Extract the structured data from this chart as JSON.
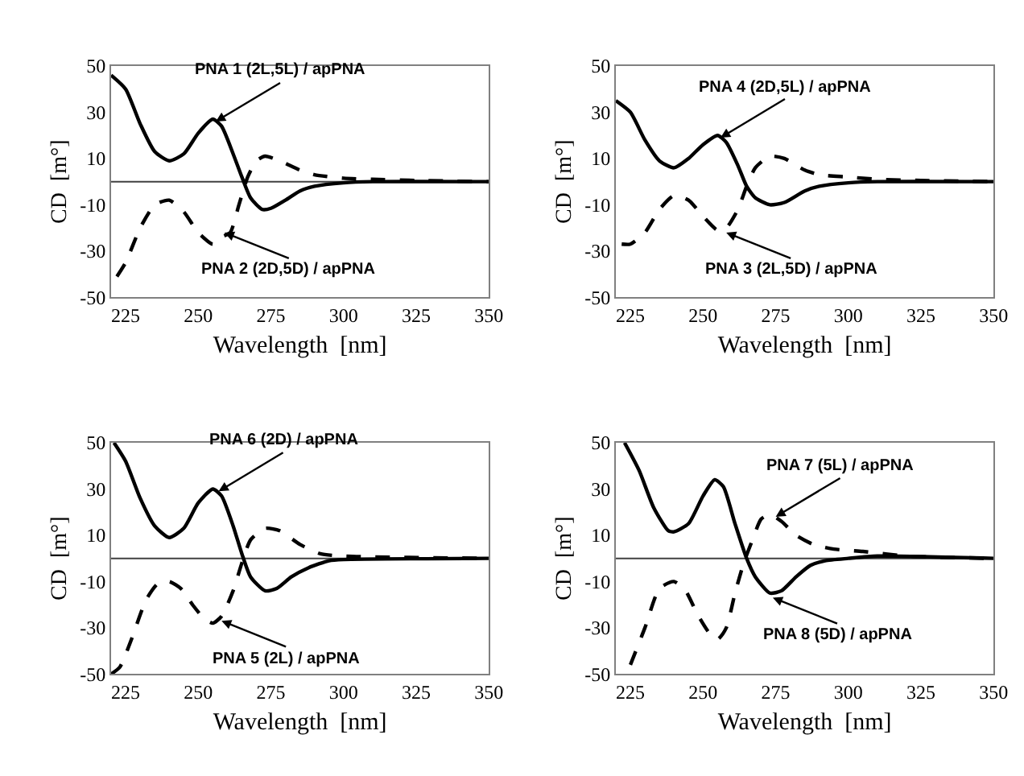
{
  "chart_data": [
    {
      "type": "line",
      "xlabel": "Wavelength  [nm]",
      "ylabel": "CD  [m°]",
      "xlim": [
        220,
        350
      ],
      "xticks": [
        225,
        250,
        275,
        300,
        325,
        350
      ],
      "ylim": [
        -50,
        50
      ],
      "yticks": [
        -50,
        -30,
        -10,
        10,
        30,
        50
      ],
      "grid": false,
      "marker": "none",
      "ref_lines": [
        {
          "axis": "y",
          "value": 0,
          "color": "#404040"
        }
      ],
      "annotations": [
        {
          "text": "PNA 1 (2L,5L) / apPNA",
          "x": 256,
          "y": 26
        },
        {
          "text": "PNA 2 (2D,5D) / apPNA",
          "x": 259,
          "y": -22
        }
      ],
      "series": [
        {
          "color": "#000000",
          "line_style": "solid",
          "x": [
            220,
            225,
            230,
            235,
            240,
            245,
            250,
            255,
            258,
            262,
            265,
            268,
            272,
            275,
            280,
            285,
            290,
            300,
            310,
            350
          ],
          "values": [
            46,
            40,
            25,
            13,
            9,
            12,
            21,
            27,
            24,
            12,
            2,
            -7,
            -12,
            -11.5,
            -8,
            -4,
            -2,
            -0.5,
            0,
            0
          ]
        },
        {
          "color": "#000000",
          "line_style": "dashed",
          "x": [
            222,
            225,
            230,
            235,
            240,
            245,
            250,
            255,
            258,
            261,
            264,
            267,
            270,
            273,
            278,
            285,
            290,
            300,
            310,
            325,
            350
          ],
          "values": [
            -41,
            -35,
            -20,
            -10,
            -8,
            -13,
            -22,
            -27,
            -24,
            -22,
            -10,
            2,
            9,
            11,
            9,
            5,
            3,
            1.5,
            1,
            0.5,
            0
          ]
        }
      ]
    },
    {
      "type": "line",
      "xlabel": "Wavelength  [nm]",
      "ylabel": "CD  [m°]",
      "xlim": [
        220,
        350
      ],
      "xticks": [
        225,
        250,
        275,
        300,
        325,
        350
      ],
      "ylim": [
        -50,
        50
      ],
      "yticks": [
        -50,
        -30,
        -10,
        10,
        30,
        50
      ],
      "grid": false,
      "marker": "none",
      "annotations": [
        {
          "text": "PNA 4 (2D,5L) / apPNA",
          "x": 256,
          "y": 19
        },
        {
          "text": "PNA 3 (2L,5D) / apPNA",
          "x": 258,
          "y": -22
        }
      ],
      "series": [
        {
          "color": "#000000",
          "line_style": "solid",
          "x": [
            220,
            225,
            230,
            235,
            240,
            245,
            250,
            255,
            258,
            262,
            265,
            268,
            273,
            278,
            285,
            290,
            300,
            310,
            350
          ],
          "values": [
            35,
            30,
            18,
            9,
            6,
            10,
            16,
            20,
            17,
            7,
            -2,
            -7,
            -10,
            -9,
            -4,
            -2,
            -0.5,
            0,
            0
          ]
        },
        {
          "color": "#000000",
          "line_style": "dashed",
          "x": [
            222,
            225,
            230,
            235,
            240,
            245,
            250,
            255,
            258,
            262,
            265,
            268,
            273,
            278,
            285,
            290,
            300,
            310,
            325,
            350
          ],
          "values": [
            -27,
            -27,
            -22,
            -12,
            -6,
            -8,
            -15,
            -21,
            -20,
            -12,
            -2,
            6,
            11,
            10,
            5,
            3,
            2,
            1,
            0.5,
            0
          ]
        }
      ]
    },
    {
      "type": "line",
      "xlabel": "Wavelength  [nm]",
      "ylabel": "CD  [m°]",
      "xlim": [
        220,
        350
      ],
      "xticks": [
        225,
        250,
        275,
        300,
        325,
        350
      ],
      "ylim": [
        -50,
        50
      ],
      "yticks": [
        -50,
        -30,
        -10,
        10,
        30,
        50
      ],
      "grid": false,
      "marker": "none",
      "ref_lines": [
        {
          "axis": "y",
          "value": 0,
          "color": "#404040"
        }
      ],
      "annotations": [
        {
          "text": "PNA 6 (2D) / apPNA",
          "x": 257,
          "y": 29
        },
        {
          "text": "PNA 5 (2L) / apPNA",
          "x": 258,
          "y": -27
        }
      ],
      "series": [
        {
          "color": "#000000",
          "line_style": "solid",
          "x": [
            221,
            225,
            230,
            235,
            240,
            245,
            250,
            255,
            258,
            262,
            265,
            268,
            273,
            277,
            282,
            288,
            295,
            300,
            350
          ],
          "values": [
            50,
            42,
            26,
            14,
            9,
            13,
            24,
            30,
            27,
            14,
            2,
            -8,
            -14,
            -13,
            -8,
            -4,
            -1,
            -0.5,
            0
          ]
        },
        {
          "color": "#000000",
          "line_style": "dashed",
          "x": [
            220,
            223,
            227,
            232,
            236,
            240,
            244,
            248,
            252,
            255,
            258,
            262,
            265,
            268,
            273,
            278,
            285,
            292,
            300,
            350
          ],
          "values": [
            -50,
            -47,
            -35,
            -18,
            -11,
            -10,
            -13,
            -20,
            -26,
            -28,
            -25,
            -14,
            -2,
            8,
            13,
            12,
            6,
            2,
            1,
            0
          ]
        }
      ]
    },
    {
      "type": "line",
      "xlabel": "Wavelength  [nm]",
      "ylabel": "CD  [m°]",
      "xlim": [
        220,
        350
      ],
      "xticks": [
        225,
        250,
        275,
        300,
        325,
        350
      ],
      "ylim": [
        -50,
        50
      ],
      "yticks": [
        -50,
        -30,
        -10,
        10,
        30,
        50
      ],
      "grid": false,
      "marker": "none",
      "ref_lines": [
        {
          "axis": "y",
          "value": 0,
          "color": "#404040"
        }
      ],
      "annotations": [
        {
          "text": "PNA 7 (5L) / apPNA",
          "x": 275,
          "y": 18
        },
        {
          "text": "PNA 8 (5D) / apPNA",
          "x": 274,
          "y": -17
        }
      ],
      "series": [
        {
          "color": "#000000",
          "line_style": "solid",
          "x": [
            223,
            228,
            233,
            238,
            240,
            245,
            250,
            254,
            257,
            261,
            265,
            268,
            273,
            277,
            282,
            287,
            292,
            300,
            310,
            350
          ],
          "values": [
            50,
            38,
            22,
            12,
            11.5,
            15,
            27,
            34,
            31,
            15,
            0,
            -8,
            -15,
            -14,
            -8,
            -3,
            -1,
            0,
            1,
            0
          ]
        },
        {
          "color": "#000000",
          "line_style": "dashed",
          "x": [
            225,
            230,
            235,
            240,
            244,
            248,
            252,
            255,
            258,
            261,
            264,
            267,
            270,
            273,
            277,
            282,
            288,
            295,
            305,
            320,
            350
          ],
          "values": [
            -46,
            -30,
            -13,
            -10,
            -14,
            -24,
            -32,
            -35,
            -30,
            -15,
            -2,
            8,
            17,
            19,
            16,
            10,
            6,
            4,
            3,
            1,
            0
          ]
        }
      ]
    }
  ]
}
